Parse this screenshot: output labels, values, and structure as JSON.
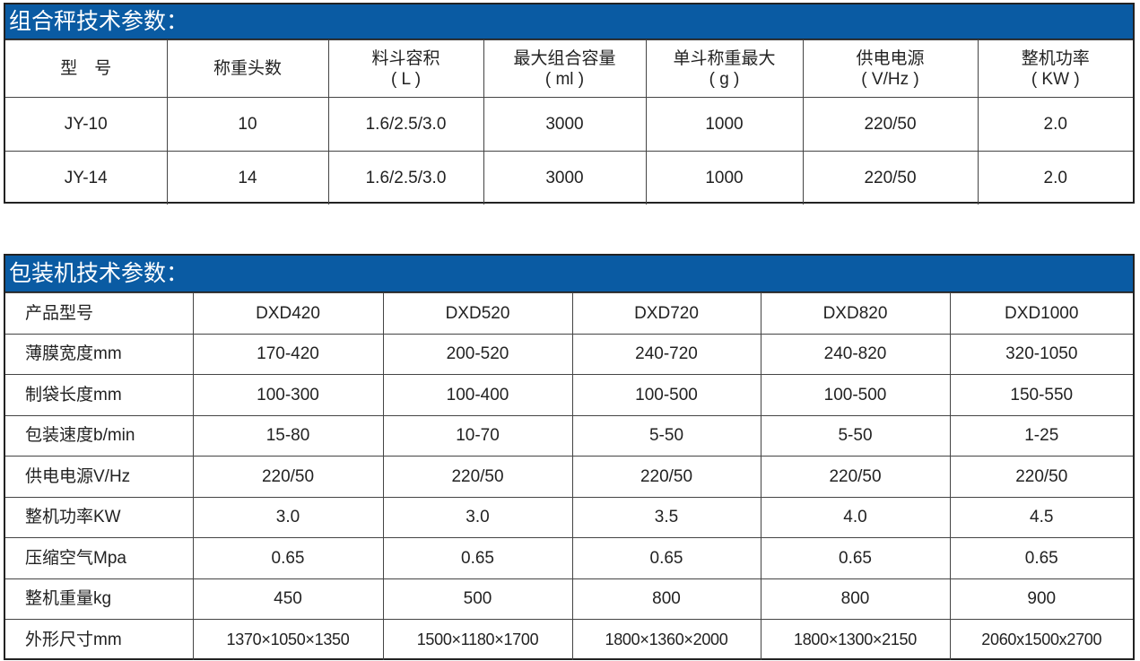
{
  "weigher": {
    "title": "组合秤技术参数：",
    "headers": [
      {
        "l1": "型　号",
        "l2": ""
      },
      {
        "l1": "称重头数",
        "l2": ""
      },
      {
        "l1": "料斗容积",
        "l2": "( L )"
      },
      {
        "l1": "最大组合容量",
        "l2": "( ml )"
      },
      {
        "l1": "单斗称重最大",
        "l2": "( g )"
      },
      {
        "l1": "供电电源",
        "l2": "( V/Hz )"
      },
      {
        "l1": "整机功率",
        "l2": "( KW )"
      }
    ],
    "rows": [
      [
        "JY-10",
        "10",
        "1.6/2.5/3.0",
        "3000",
        "1000",
        "220/50",
        "2.0"
      ],
      [
        "JY-14",
        "14",
        "1.6/2.5/3.0",
        "3000",
        "1000",
        "220/50",
        "2.0"
      ]
    ]
  },
  "packer": {
    "title": "包装机技术参数：",
    "rows": [
      [
        "产品型号",
        "DXD420",
        "DXD520",
        "DXD720",
        "DXD820",
        "DXD1000"
      ],
      [
        "薄膜宽度mm",
        "170-420",
        "200-520",
        "240-720",
        "240-820",
        "320-1050"
      ],
      [
        "制袋长度mm",
        "100-300",
        "100-400",
        "100-500",
        "100-500",
        "150-550"
      ],
      [
        "包装速度b/min",
        "15-80",
        "10-70",
        "5-50",
        "5-50",
        "1-25"
      ],
      [
        "供电电源V/Hz",
        "220/50",
        "220/50",
        "220/50",
        "220/50",
        "220/50"
      ],
      [
        "整机功率KW",
        "3.0",
        "3.0",
        "3.5",
        "4.0",
        "4.5"
      ],
      [
        "压缩空气Mpa",
        "0.65",
        "0.65",
        "0.65",
        "0.65",
        "0.65"
      ],
      [
        "整机重量kg",
        "450",
        "500",
        "800",
        "800",
        "900"
      ],
      [
        "外形尺寸mm",
        "1370×1050×1350",
        "1500×1180×1700",
        "1800×1360×2000",
        "1800×1300×2150",
        "2060x1500x2700"
      ]
    ]
  },
  "colors": {
    "header_bar": "#0a5ba3"
  }
}
